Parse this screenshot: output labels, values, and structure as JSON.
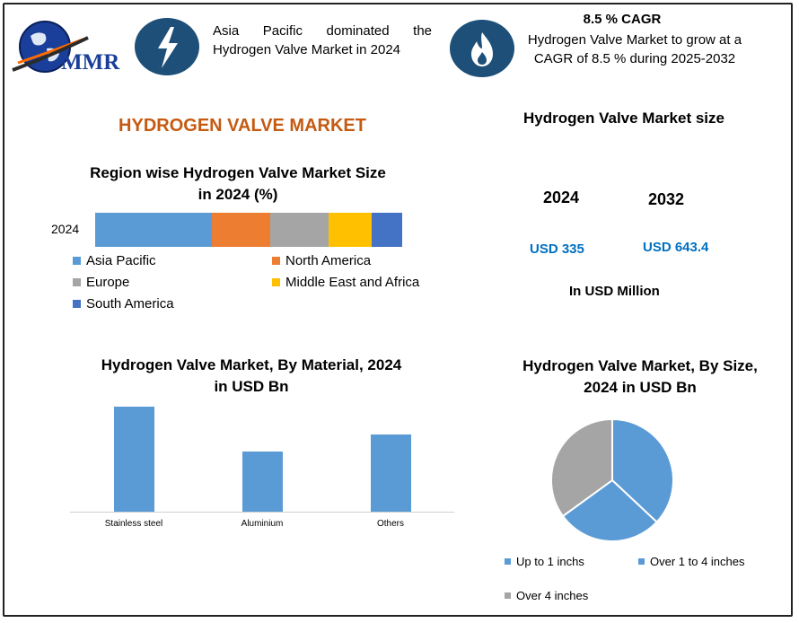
{
  "logo": {
    "text": "MMR"
  },
  "banner": {
    "left_text": "Asia Pacific dominated the Hydrogen Valve Market in 2024",
    "cagr_title": "8.5 % CAGR",
    "cagr_text": "Hydrogen Valve Market to grow at a CAGR of 8.5 % during 2025-2032",
    "left_icon": "lightning-icon",
    "right_icon": "flame-icon"
  },
  "main_title": "HYDROGEN VALVE MARKET",
  "colors": {
    "title": "#c55a11",
    "dark_blue": "#1d4f78",
    "value_blue": "#0070c0"
  },
  "region_chart": {
    "title_line1": "Region wise Hydrogen Valve Market Size",
    "title_line2": "in 2024 (%)",
    "year_label": "2024"
  },
  "market_size": {
    "title": "Hydrogen Valve Market size",
    "year1": "2024",
    "year2": "2032",
    "value1": "USD 335",
    "value2": "USD 643.4",
    "unit": "In USD Million"
  },
  "material_chart": {
    "title_line1": "Hydrogen Valve Market, By Material, 2024",
    "title_line2": "in USD Bn"
  },
  "size_chart": {
    "title_line1": "Hydrogen Valve Market, By Size,",
    "title_line2": "2024 in USD Bn"
  },
  "chart_data": [
    {
      "type": "bar",
      "orientation": "horizontal-stacked",
      "title": "Region wise Hydrogen Valve Market Size in 2024 (%)",
      "categories": [
        "2024"
      ],
      "series": [
        {
          "name": "Asia Pacific",
          "values": [
            38
          ],
          "color": "#5b9bd5"
        },
        {
          "name": "North America",
          "values": [
            19
          ],
          "color": "#ed7d31"
        },
        {
          "name": "Europe",
          "values": [
            19
          ],
          "color": "#a5a5a5"
        },
        {
          "name": "Middle East and Africa",
          "values": [
            14
          ],
          "color": "#ffc000"
        },
        {
          "name": "South America",
          "values": [
            10
          ],
          "color": "#4472c4"
        }
      ]
    },
    {
      "type": "bar",
      "title": "Hydrogen Valve Market, By Material, 2024 in USD Bn",
      "categories": [
        "Stainless steel",
        "Aluminium",
        "Others"
      ],
      "values": [
        118,
        68,
        87
      ],
      "ylim": [
        0,
        120
      ],
      "color": "#5b9bd5"
    },
    {
      "type": "pie",
      "title": "Hydrogen Valve Market, By Size, 2024 in USD Bn",
      "labels": [
        "Up to 1 inchs",
        "Over 1 to 4 inches",
        "Over 4 inches"
      ],
      "values": [
        37,
        28,
        35
      ],
      "colors": [
        "#5b9bd5",
        "#5b9bd5",
        "#a5a5a5"
      ]
    }
  ]
}
